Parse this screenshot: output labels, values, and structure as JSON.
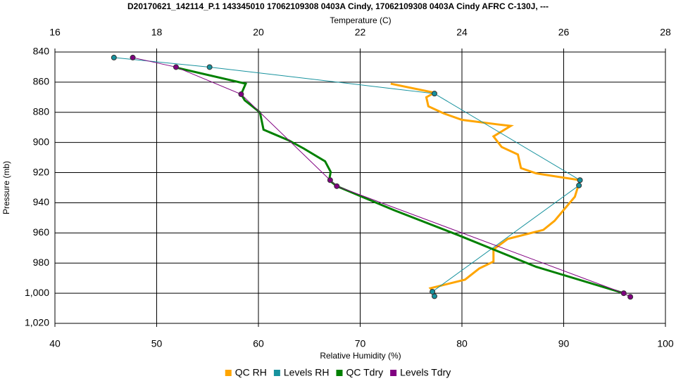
{
  "chart_data": {
    "type": "line",
    "title": "D20170621_142114_P.1 143345010 17062109308 0403A Cindy, 17062109308 0403A Cindy AFRC C-130J, ---",
    "x_label": "Relative Humidity (%)",
    "x2_label": "Temperature (C)",
    "y_label": "Pressure (mb)",
    "xlim": [
      40,
      100
    ],
    "xticks": [
      40,
      50,
      60,
      70,
      80,
      90,
      100
    ],
    "x2lim": [
      16,
      28
    ],
    "x2ticks": [
      16,
      18,
      20,
      22,
      24,
      26,
      28
    ],
    "ylim": [
      1020,
      840
    ],
    "yticks": [
      840,
      860,
      880,
      900,
      920,
      940,
      960,
      980,
      {
        "value": 1000,
        "label": "1,000"
      },
      {
        "value": 1020,
        "label": "1,020"
      }
    ],
    "grid": true,
    "legend": "bottom",
    "series": [
      {
        "name": "QC RH",
        "color": "#ffa500",
        "axis": "x",
        "marker": "none",
        "x": [
          73.0,
          77.3,
          76.5,
          76.7,
          78.2,
          80.0,
          83.5,
          84.8,
          83.1,
          83.9,
          85.5,
          85.8,
          87.3,
          91.6,
          91.1,
          90.1,
          89.1,
          88.0,
          84.5,
          83.1,
          83.1,
          81.7,
          80.3,
          76.9,
          77.3
        ],
        "values": [
          861,
          867,
          870,
          876,
          880.7,
          885,
          888,
          889,
          896,
          903,
          908,
          917,
          920.5,
          925,
          936,
          944,
          952,
          958,
          964,
          971,
          979,
          983.6,
          991,
          996.7,
          1000
        ]
      },
      {
        "name": "Levels RH",
        "color": "#17929e",
        "axis": "x",
        "marker": "circle",
        "x": [
          45.8,
          55.2,
          77.3,
          91.6,
          91.5,
          77.1,
          77.3
        ],
        "values": [
          843.7,
          850,
          867.6,
          925,
          928.5,
          999,
          1002
        ]
      },
      {
        "name": "QC Tdry",
        "color": "#008000",
        "axis": "x2",
        "marker": "none",
        "x": [
          18.38,
          19.75,
          19.66,
          19.73,
          20.03,
          20.1,
          20.59,
          20.89,
          21.31,
          21.42,
          21.39,
          21.54,
          22.67,
          23.93,
          25.46,
          27.18
        ],
        "values": [
          850.3,
          861,
          868,
          872,
          880,
          891.5,
          898.5,
          904,
          912.5,
          919.5,
          925,
          929,
          945,
          961.5,
          982.5,
          1000
        ]
      },
      {
        "name": "Levels Tdry",
        "color": "#800080",
        "axis": "x2",
        "marker": "circle",
        "x": [
          17.53,
          18.38,
          19.66,
          21.41,
          21.54,
          27.18,
          27.31
        ],
        "values": [
          843.7,
          850,
          868,
          925,
          929,
          1000,
          1002.4
        ]
      }
    ]
  }
}
